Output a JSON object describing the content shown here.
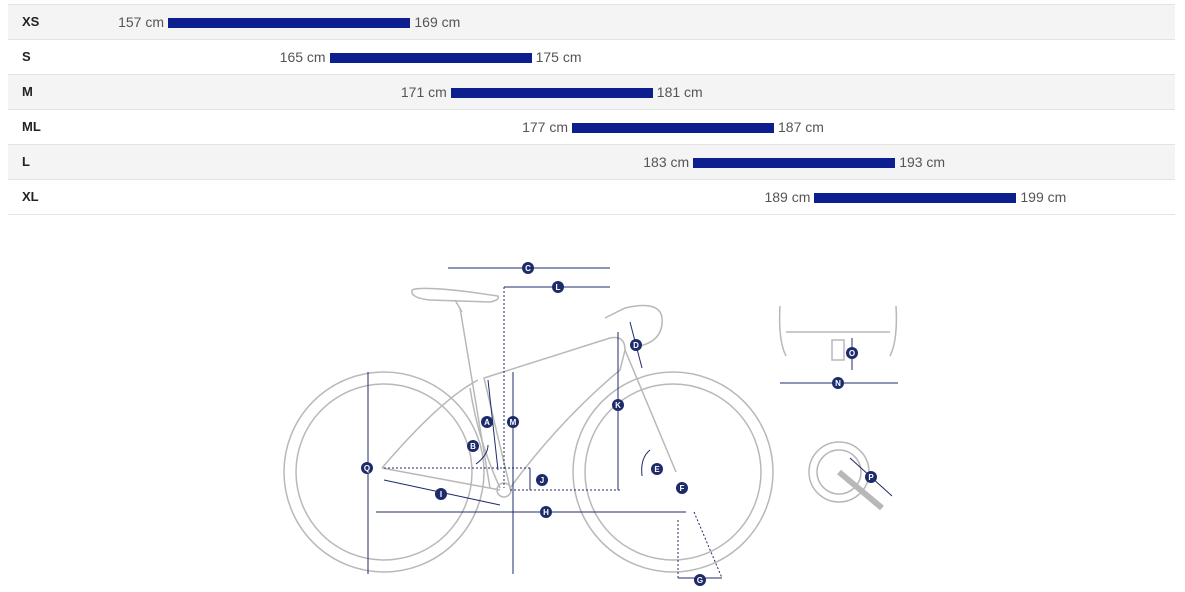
{
  "size_chart": {
    "rows": [
      {
        "size": "XS",
        "min": "157 cm",
        "max": "169 cm",
        "min_cm": 157,
        "max_cm": 169
      },
      {
        "size": "S",
        "min": "165 cm",
        "max": "175 cm",
        "min_cm": 165,
        "max_cm": 175
      },
      {
        "size": "M",
        "min": "171 cm",
        "max": "181 cm",
        "min_cm": 171,
        "max_cm": 181
      },
      {
        "size": "ML",
        "min": "177 cm",
        "max": "187 cm",
        "min_cm": 177,
        "max_cm": 187
      },
      {
        "size": "L",
        "min": "183 cm",
        "max": "193 cm",
        "min_cm": 183,
        "max_cm": 193
      },
      {
        "size": "XL",
        "min": "189 cm",
        "max": "199 cm",
        "min_cm": 189,
        "max_cm": 199
      }
    ],
    "bar_color": "#0d1e8f"
  },
  "geometry_diagram": {
    "labels": [
      "A",
      "B",
      "C",
      "D",
      "E",
      "F",
      "G",
      "H",
      "I",
      "J",
      "K",
      "L",
      "M",
      "N",
      "O",
      "P",
      "Q"
    ],
    "marker_color": "#1d2b6b",
    "line_color": "#b8b8b8"
  }
}
